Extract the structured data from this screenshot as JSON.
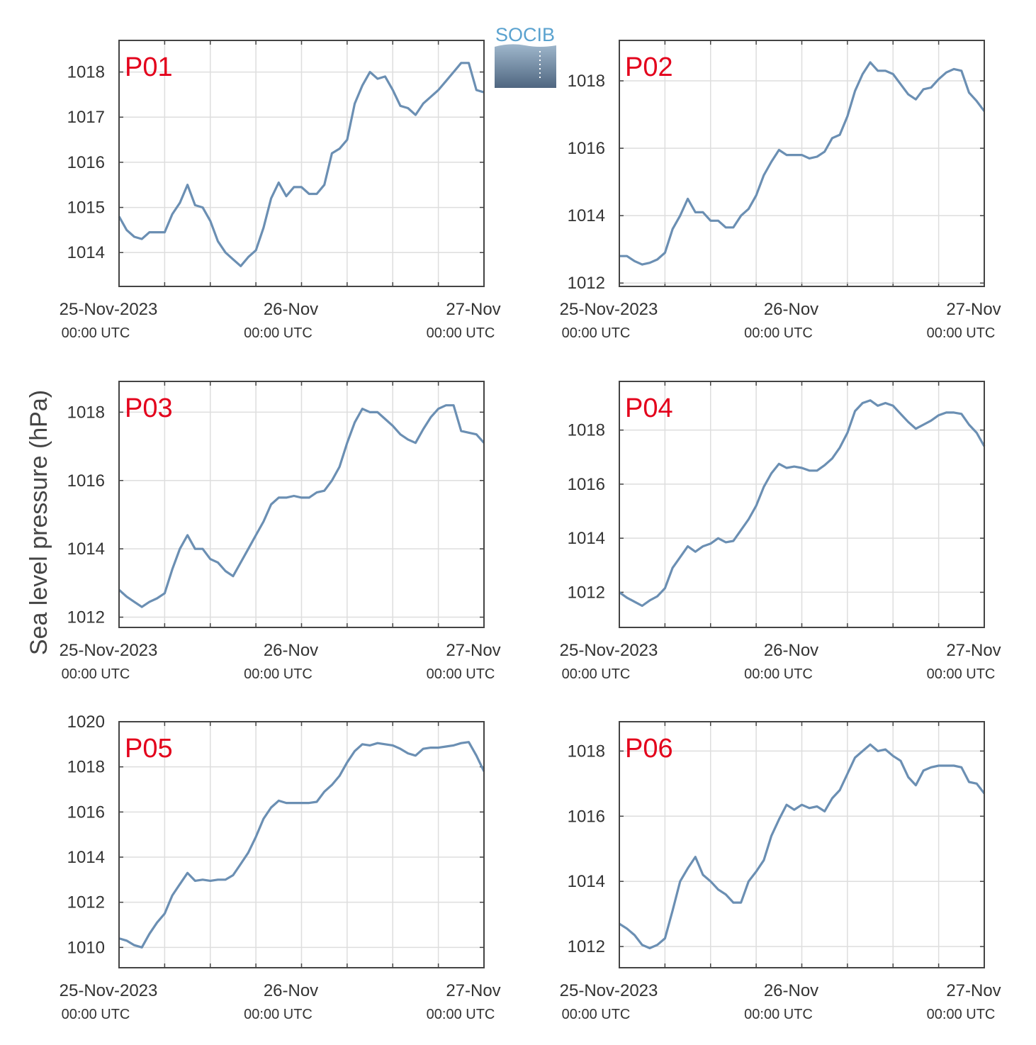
{
  "figure": {
    "ylabel": "Sea level pressure (hPa)",
    "logo": {
      "text": "SOCIB",
      "color": "#5aa2cf"
    },
    "colors": {
      "line": "#6b8fb3",
      "label": "#e3001b",
      "grid": "#dedede",
      "axis": "#444444"
    },
    "xaxis": {
      "labels": [
        {
          "date": "25-Nov-2023",
          "time": "00:00 UTC"
        },
        {
          "date": "26-Nov",
          "time": "00:00 UTC"
        },
        {
          "date": "27-Nov",
          "time": "00:00 UTC"
        }
      ],
      "range_hours": [
        0,
        48
      ],
      "grid_step_hours": 6
    }
  },
  "chart_data": [
    {
      "type": "line",
      "title": "P01",
      "ylim": [
        1013.25,
        1018.7
      ],
      "yticks": [
        1014,
        1015,
        1016,
        1017,
        1018
      ],
      "grid": true,
      "x_hours": [
        0,
        1,
        2,
        3,
        4,
        5,
        6,
        7,
        8,
        9,
        10,
        11,
        12,
        13,
        14,
        15,
        16,
        17,
        18,
        19,
        20,
        21,
        22,
        23,
        24,
        25,
        26,
        27,
        28,
        29,
        30,
        31,
        32,
        33,
        34,
        35,
        36,
        37,
        38,
        39,
        40,
        41,
        42,
        43,
        44,
        45,
        46,
        47,
        48
      ],
      "values": [
        1014.8,
        1014.5,
        1014.35,
        1014.3,
        1014.45,
        1014.45,
        1014.45,
        1014.85,
        1015.1,
        1015.5,
        1015.05,
        1015.0,
        1014.7,
        1014.25,
        1014.0,
        1013.85,
        1013.7,
        1013.9,
        1014.05,
        1014.55,
        1015.2,
        1015.55,
        1015.25,
        1015.45,
        1015.45,
        1015.3,
        1015.3,
        1015.5,
        1016.2,
        1016.3,
        1016.5,
        1017.3,
        1017.7,
        1018.0,
        1017.85,
        1017.9,
        1017.6,
        1017.25,
        1017.2,
        1017.05,
        1017.3,
        1017.45,
        1017.6,
        1017.8,
        1018.0,
        1018.2,
        1018.2,
        1017.6,
        1017.55
      ]
    },
    {
      "type": "line",
      "title": "P02",
      "ylim": [
        1011.9,
        1019.2
      ],
      "yticks": [
        1012,
        1014,
        1016,
        1018
      ],
      "grid": true,
      "x_hours": [
        0,
        1,
        2,
        3,
        4,
        5,
        6,
        7,
        8,
        9,
        10,
        11,
        12,
        13,
        14,
        15,
        16,
        17,
        18,
        19,
        20,
        21,
        22,
        23,
        24,
        25,
        26,
        27,
        28,
        29,
        30,
        31,
        32,
        33,
        34,
        35,
        36,
        37,
        38,
        39,
        40,
        41,
        42,
        43,
        44,
        45,
        46,
        47,
        48
      ],
      "values": [
        1012.8,
        1012.8,
        1012.65,
        1012.55,
        1012.6,
        1012.7,
        1012.9,
        1013.6,
        1014.0,
        1014.5,
        1014.1,
        1014.1,
        1013.85,
        1013.85,
        1013.65,
        1013.65,
        1014.0,
        1014.2,
        1014.6,
        1015.2,
        1015.6,
        1015.95,
        1015.8,
        1015.8,
        1015.8,
        1015.7,
        1015.75,
        1015.9,
        1016.3,
        1016.4,
        1016.95,
        1017.7,
        1018.2,
        1018.55,
        1018.3,
        1018.3,
        1018.2,
        1017.9,
        1017.6,
        1017.45,
        1017.75,
        1017.8,
        1018.05,
        1018.25,
        1018.35,
        1018.3,
        1017.65,
        1017.4,
        1017.1
      ]
    },
    {
      "type": "line",
      "title": "P03",
      "ylim": [
        1011.7,
        1018.9
      ],
      "yticks": [
        1012,
        1014,
        1016,
        1018
      ],
      "grid": true,
      "x_hours": [
        0,
        1,
        2,
        3,
        4,
        5,
        6,
        7,
        8,
        9,
        10,
        11,
        12,
        13,
        14,
        15,
        16,
        17,
        18,
        19,
        20,
        21,
        22,
        23,
        24,
        25,
        26,
        27,
        28,
        29,
        30,
        31,
        32,
        33,
        34,
        35,
        36,
        37,
        38,
        39,
        40,
        41,
        42,
        43,
        44,
        45,
        46,
        47,
        48
      ],
      "values": [
        1012.8,
        1012.6,
        1012.45,
        1012.3,
        1012.45,
        1012.55,
        1012.7,
        1013.4,
        1014.0,
        1014.4,
        1014.0,
        1014.0,
        1013.7,
        1013.6,
        1013.35,
        1013.2,
        1013.6,
        1014.0,
        1014.4,
        1014.8,
        1015.3,
        1015.5,
        1015.5,
        1015.55,
        1015.5,
        1015.5,
        1015.65,
        1015.7,
        1016.0,
        1016.4,
        1017.1,
        1017.7,
        1018.1,
        1018.0,
        1018.0,
        1017.8,
        1017.6,
        1017.35,
        1017.2,
        1017.1,
        1017.5,
        1017.85,
        1018.1,
        1018.2,
        1018.2,
        1017.45,
        1017.4,
        1017.35,
        1017.1
      ]
    },
    {
      "type": "line",
      "title": "P04",
      "ylim": [
        1010.7,
        1019.8
      ],
      "yticks": [
        1012,
        1014,
        1016,
        1018
      ],
      "grid": true,
      "x_hours": [
        0,
        1,
        2,
        3,
        4,
        5,
        6,
        7,
        8,
        9,
        10,
        11,
        12,
        13,
        14,
        15,
        16,
        17,
        18,
        19,
        20,
        21,
        22,
        23,
        24,
        25,
        26,
        27,
        28,
        29,
        30,
        31,
        32,
        33,
        34,
        35,
        36,
        37,
        38,
        39,
        40,
        41,
        42,
        43,
        44,
        45,
        46,
        47,
        48
      ],
      "values": [
        1012.0,
        1011.8,
        1011.65,
        1011.5,
        1011.7,
        1011.85,
        1012.15,
        1012.9,
        1013.3,
        1013.7,
        1013.5,
        1013.7,
        1013.8,
        1014.0,
        1013.85,
        1013.9,
        1014.3,
        1014.7,
        1015.2,
        1015.9,
        1016.4,
        1016.75,
        1016.6,
        1016.65,
        1016.6,
        1016.5,
        1016.5,
        1016.7,
        1016.95,
        1017.35,
        1017.9,
        1018.7,
        1019.0,
        1019.1,
        1018.9,
        1019.0,
        1018.9,
        1018.6,
        1018.3,
        1018.05,
        1018.2,
        1018.35,
        1018.55,
        1018.65,
        1018.65,
        1018.6,
        1018.2,
        1017.9,
        1017.4
      ]
    },
    {
      "type": "line",
      "title": "P05",
      "ylim": [
        1009.1,
        1020.0
      ],
      "yticks": [
        1010,
        1012,
        1014,
        1016,
        1018,
        1020
      ],
      "grid": true,
      "x_hours": [
        0,
        1,
        2,
        3,
        4,
        5,
        6,
        7,
        8,
        9,
        10,
        11,
        12,
        13,
        14,
        15,
        16,
        17,
        18,
        19,
        20,
        21,
        22,
        23,
        24,
        25,
        26,
        27,
        28,
        29,
        30,
        31,
        32,
        33,
        34,
        35,
        36,
        37,
        38,
        39,
        40,
        41,
        42,
        43,
        44,
        45,
        46,
        47,
        48
      ],
      "values": [
        1010.4,
        1010.3,
        1010.1,
        1010.0,
        1010.6,
        1011.1,
        1011.5,
        1012.3,
        1012.8,
        1013.3,
        1012.95,
        1013.0,
        1012.95,
        1013.0,
        1013.0,
        1013.2,
        1013.7,
        1014.2,
        1014.9,
        1015.7,
        1016.2,
        1016.5,
        1016.4,
        1016.4,
        1016.4,
        1016.4,
        1016.45,
        1016.9,
        1017.2,
        1017.6,
        1018.2,
        1018.7,
        1019.0,
        1018.95,
        1019.05,
        1019.0,
        1018.95,
        1018.8,
        1018.6,
        1018.5,
        1018.8,
        1018.85,
        1018.85,
        1018.9,
        1018.95,
        1019.05,
        1019.1,
        1018.5,
        1017.8
      ]
    },
    {
      "type": "line",
      "title": "P06",
      "ylim": [
        1011.35,
        1018.9
      ],
      "yticks": [
        1012,
        1014,
        1016,
        1018
      ],
      "grid": true,
      "x_hours": [
        0,
        1,
        2,
        3,
        4,
        5,
        6,
        7,
        8,
        9,
        10,
        11,
        12,
        13,
        14,
        15,
        16,
        17,
        18,
        19,
        20,
        21,
        22,
        23,
        24,
        25,
        26,
        27,
        28,
        29,
        30,
        31,
        32,
        33,
        34,
        35,
        36,
        37,
        38,
        39,
        40,
        41,
        42,
        43,
        44,
        45,
        46,
        47,
        48
      ],
      "values": [
        1012.7,
        1012.55,
        1012.35,
        1012.05,
        1011.95,
        1012.05,
        1012.25,
        1013.1,
        1014.0,
        1014.4,
        1014.75,
        1014.2,
        1014.0,
        1013.75,
        1013.6,
        1013.35,
        1013.35,
        1014.0,
        1014.3,
        1014.65,
        1015.4,
        1015.9,
        1016.35,
        1016.2,
        1016.35,
        1016.25,
        1016.3,
        1016.15,
        1016.55,
        1016.8,
        1017.3,
        1017.8,
        1018.0,
        1018.2,
        1018.0,
        1018.05,
        1017.85,
        1017.7,
        1017.2,
        1016.95,
        1017.4,
        1017.5,
        1017.55,
        1017.55,
        1017.55,
        1017.5,
        1017.05,
        1017.0,
        1016.7
      ]
    }
  ]
}
